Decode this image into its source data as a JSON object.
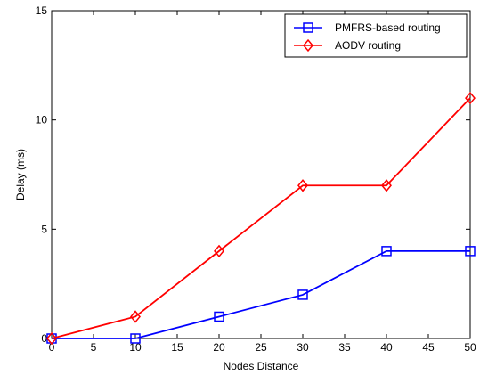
{
  "chart_data": {
    "type": "line",
    "title": "",
    "xlabel": "Nodes Distance",
    "ylabel": "Delay (ms)",
    "xlim": [
      0,
      50
    ],
    "ylim": [
      0,
      15
    ],
    "xticks": [
      "0",
      "5",
      "10",
      "15",
      "20",
      "25",
      "30",
      "35",
      "40",
      "45",
      "50"
    ],
    "yticks": [
      "0",
      "5",
      "10",
      "15"
    ],
    "grid": false,
    "legend_position": "top-right",
    "x": [
      0,
      10,
      20,
      30,
      40,
      50
    ],
    "series": [
      {
        "name": "PMFRS-based routing",
        "values": [
          0,
          0,
          1,
          2,
          4,
          4
        ],
        "color": "#0000ff",
        "marker": "square"
      },
      {
        "name": "AODV routing",
        "values": [
          0,
          1,
          4,
          7,
          7,
          11
        ],
        "color": "#ff0000",
        "marker": "diamond"
      }
    ]
  }
}
